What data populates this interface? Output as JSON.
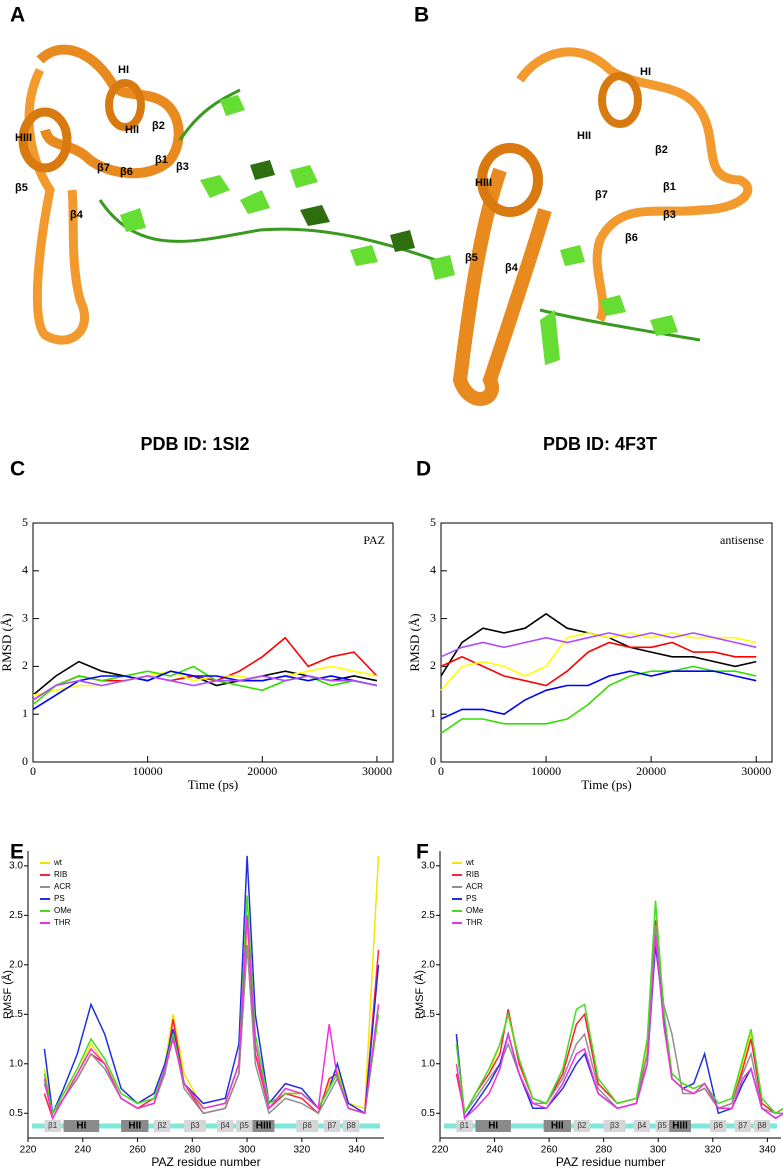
{
  "panel_labels": [
    "A",
    "B",
    "C",
    "D",
    "E",
    "F"
  ],
  "structures": [
    {
      "caption": "PDB ID: 1SI2",
      "labels": [
        "HI",
        "HII",
        "HIII",
        "β2",
        "β7",
        "β6",
        "β1",
        "β3",
        "β5",
        "β4"
      ]
    },
    {
      "caption": "PDB ID: 4F3T",
      "labels": [
        "HI",
        "HII",
        "HIII",
        "β2",
        "β1",
        "β7",
        "β3",
        "β6",
        "β5",
        "β4"
      ]
    }
  ],
  "chart_data": [
    {
      "type": "line",
      "annotation": "PAZ",
      "x_label": "Time (ps)",
      "y_label": "RMSD (Å)",
      "x": [
        0,
        2000,
        4000,
        6000,
        8000,
        10000,
        12000,
        14000,
        16000,
        18000,
        20000,
        22000,
        24000,
        26000,
        28000,
        30000
      ],
      "xlim": [
        0,
        31400
      ],
      "ylim": [
        0,
        5
      ],
      "xticks": [
        0,
        10000,
        20000,
        30000
      ],
      "yticks": [
        0,
        1,
        2,
        3,
        4,
        5
      ],
      "series": [
        {
          "color": "#000000",
          "values": [
            1.4,
            1.8,
            2.1,
            1.9,
            1.8,
            1.7,
            1.9,
            1.8,
            1.6,
            1.7,
            1.8,
            1.9,
            1.8,
            1.7,
            1.8,
            1.7
          ]
        },
        {
          "color": "#ff0000",
          "values": [
            1.3,
            1.6,
            1.8,
            1.7,
            1.7,
            1.8,
            1.7,
            1.8,
            1.7,
            1.9,
            2.2,
            2.6,
            2.0,
            2.2,
            2.3,
            1.8
          ]
        },
        {
          "color": "#ffff00",
          "values": [
            1.4,
            1.5,
            1.6,
            1.6,
            1.7,
            1.8,
            1.9,
            1.7,
            1.8,
            1.8,
            1.7,
            1.8,
            1.9,
            2.0,
            1.9,
            1.8
          ]
        },
        {
          "color": "#33dd00",
          "values": [
            1.2,
            1.6,
            1.8,
            1.7,
            1.8,
            1.9,
            1.8,
            2.0,
            1.7,
            1.6,
            1.5,
            1.7,
            1.8,
            1.6,
            1.7,
            1.6
          ]
        },
        {
          "color": "#0000ff",
          "values": [
            1.1,
            1.4,
            1.7,
            1.8,
            1.8,
            1.7,
            1.9,
            1.8,
            1.8,
            1.7,
            1.7,
            1.8,
            1.7,
            1.8,
            1.7,
            1.6
          ]
        },
        {
          "color": "#b04cff",
          "values": [
            1.3,
            1.6,
            1.7,
            1.6,
            1.7,
            1.8,
            1.7,
            1.6,
            1.7,
            1.7,
            1.8,
            1.7,
            1.8,
            1.7,
            1.7,
            1.6
          ]
        }
      ]
    },
    {
      "type": "line",
      "annotation": "antisense",
      "x_label": "Time (ps)",
      "y_label": "RMSD (Å)",
      "x": [
        0,
        2000,
        4000,
        6000,
        8000,
        10000,
        12000,
        14000,
        16000,
        18000,
        20000,
        22000,
        24000,
        26000,
        28000,
        30000
      ],
      "xlim": [
        0,
        31500
      ],
      "ylim": [
        0,
        5
      ],
      "xticks": [
        0,
        10000,
        20000,
        30000
      ],
      "yticks": [
        0,
        1,
        2,
        3,
        4,
        5
      ],
      "series": [
        {
          "color": "#000000",
          "values": [
            1.8,
            2.5,
            2.8,
            2.7,
            2.8,
            3.1,
            2.8,
            2.7,
            2.6,
            2.4,
            2.3,
            2.2,
            2.2,
            2.1,
            2.0,
            2.1
          ]
        },
        {
          "color": "#ff0000",
          "values": [
            2.0,
            2.2,
            2.0,
            1.8,
            1.7,
            1.6,
            1.9,
            2.3,
            2.5,
            2.4,
            2.4,
            2.5,
            2.3,
            2.3,
            2.2,
            2.2
          ]
        },
        {
          "color": "#ffff00",
          "values": [
            1.5,
            2.0,
            2.1,
            2.0,
            1.8,
            2.0,
            2.6,
            2.7,
            2.6,
            2.7,
            2.6,
            2.7,
            2.6,
            2.6,
            2.6,
            2.5
          ]
        },
        {
          "color": "#33dd00",
          "values": [
            0.6,
            0.9,
            0.9,
            0.8,
            0.8,
            0.8,
            0.9,
            1.2,
            1.6,
            1.8,
            1.9,
            1.9,
            2.0,
            1.9,
            1.9,
            1.8
          ]
        },
        {
          "color": "#0000ff",
          "values": [
            0.9,
            1.1,
            1.1,
            1.0,
            1.3,
            1.5,
            1.6,
            1.6,
            1.8,
            1.9,
            1.8,
            1.9,
            1.9,
            1.9,
            1.8,
            1.7
          ]
        },
        {
          "color": "#b04cff",
          "values": [
            2.2,
            2.4,
            2.5,
            2.4,
            2.5,
            2.6,
            2.5,
            2.6,
            2.7,
            2.6,
            2.7,
            2.6,
            2.7,
            2.6,
            2.5,
            2.4
          ]
        }
      ]
    },
    {
      "type": "line",
      "x_label": "PAZ residue number",
      "y_label": "RMSF (Å)",
      "legend": "upper left",
      "x": [
        226,
        229,
        233,
        238,
        243,
        248,
        254,
        260,
        266,
        270,
        273,
        277,
        284,
        292,
        297,
        300,
        303,
        308,
        314,
        320,
        326,
        330,
        333,
        337,
        343,
        348
      ],
      "xlim": [
        220,
        350
      ],
      "ylim": [
        0.25,
        3.15
      ],
      "xticks": [
        220,
        240,
        260,
        280,
        300,
        320,
        340
      ],
      "yticks": [
        0.5,
        {
          "value": 1,
          "label": "1.0"
        },
        1.5,
        {
          "value": 2,
          "label": "2.0"
        },
        2.5,
        {
          "value": 3,
          "label": "3.0"
        }
      ],
      "series": [
        {
          "name": "wt",
          "color": "#f5e400",
          "values": [
            0.95,
            0.5,
            0.7,
            0.9,
            1.2,
            1.0,
            0.7,
            0.6,
            0.7,
            1.0,
            1.5,
            0.9,
            0.55,
            0.6,
            1.0,
            2.4,
            1.2,
            0.6,
            0.7,
            0.7,
            0.55,
            0.8,
            0.95,
            0.6,
            0.55,
            3.1
          ]
        },
        {
          "name": "RIB",
          "color": "#ff2040",
          "values": [
            0.7,
            0.45,
            0.65,
            0.85,
            1.1,
            1.0,
            0.65,
            0.55,
            0.65,
            0.9,
            1.45,
            0.8,
            0.5,
            0.55,
            0.9,
            2.2,
            1.1,
            0.55,
            0.7,
            0.65,
            0.5,
            0.85,
            0.9,
            0.55,
            0.5,
            2.15
          ]
        },
        {
          "name": "ACR",
          "color": "#909090",
          "values": [
            0.8,
            0.5,
            0.65,
            0.85,
            1.1,
            0.95,
            0.65,
            0.55,
            0.6,
            0.9,
            1.3,
            0.75,
            0.5,
            0.55,
            0.9,
            2.2,
            1.0,
            0.5,
            0.65,
            0.6,
            0.5,
            0.7,
            0.85,
            0.55,
            0.5,
            1.6
          ]
        },
        {
          "name": "PS",
          "color": "#2030e0",
          "values": [
            1.15,
            0.5,
            0.75,
            1.1,
            1.6,
            1.3,
            0.75,
            0.6,
            0.7,
            1.0,
            1.35,
            0.8,
            0.6,
            0.65,
            1.2,
            3.1,
            1.5,
            0.6,
            0.8,
            0.75,
            0.55,
            0.75,
            1.0,
            0.6,
            0.5,
            2.0
          ]
        },
        {
          "name": "OMe",
          "color": "#44dd22",
          "values": [
            0.9,
            0.5,
            0.7,
            0.95,
            1.25,
            1.05,
            0.7,
            0.6,
            0.65,
            0.95,
            1.3,
            0.8,
            0.55,
            0.6,
            1.0,
            2.7,
            1.3,
            0.6,
            0.7,
            0.7,
            0.55,
            0.75,
            0.9,
            0.55,
            0.5,
            1.5
          ]
        },
        {
          "name": "THR",
          "color": "#ee33dd",
          "values": [
            0.85,
            0.45,
            0.65,
            0.9,
            1.15,
            1.0,
            0.65,
            0.55,
            0.6,
            0.95,
            1.25,
            0.8,
            0.55,
            0.6,
            1.0,
            2.5,
            1.2,
            0.55,
            0.75,
            0.7,
            0.55,
            1.4,
            0.85,
            0.55,
            0.5,
            1.6
          ]
        }
      ],
      "secondary_structure": [
        {
          "label": "β1",
          "from": 226,
          "to": 232,
          "kind": "strand"
        },
        {
          "label": "HI",
          "from": 233,
          "to": 246,
          "kind": "helix"
        },
        {
          "label": "HII",
          "from": 254,
          "to": 264,
          "kind": "helix"
        },
        {
          "label": "β2",
          "from": 266,
          "to": 272,
          "kind": "strand"
        },
        {
          "label": "β3",
          "from": 277,
          "to": 285,
          "kind": "strand"
        },
        {
          "label": "β4",
          "from": 289,
          "to": 295,
          "kind": "strand"
        },
        {
          "label": "β5",
          "from": 296,
          "to": 302,
          "kind": "strand"
        },
        {
          "label": "HIII",
          "from": 302,
          "to": 310,
          "kind": "helix"
        },
        {
          "label": "β6",
          "from": 318,
          "to": 326,
          "kind": "strand"
        },
        {
          "label": "β7",
          "from": 328,
          "to": 334,
          "kind": "strand"
        },
        {
          "label": "β8",
          "from": 335,
          "to": 341,
          "kind": "strand"
        }
      ]
    },
    {
      "type": "line",
      "x_label": "PAZ residue number",
      "y_label": "RMSF (Å)",
      "legend": "upper left",
      "x": [
        226,
        229,
        233,
        238,
        242,
        245,
        249,
        254,
        259,
        265,
        270,
        273,
        278,
        285,
        292,
        296,
        299,
        302,
        305,
        309,
        313,
        317,
        322,
        327,
        331,
        334,
        338,
        343,
        346
      ],
      "xlim": [
        220,
        345
      ],
      "ylim": [
        0.25,
        3.15
      ],
      "xticks": [
        220,
        240,
        260,
        280,
        300,
        320,
        340
      ],
      "yticks": [
        0.5,
        {
          "value": 1,
          "label": "1.0"
        },
        1.5,
        {
          "value": 2,
          "label": "2.0"
        },
        2.5,
        {
          "value": 3,
          "label": "3.0"
        }
      ],
      "series": [
        {
          "name": "wt",
          "color": "#f5e400",
          "values": [
            1.3,
            0.5,
            0.7,
            0.9,
            1.2,
            1.5,
            1.0,
            0.65,
            0.6,
            0.9,
            1.4,
            1.5,
            0.8,
            0.6,
            0.65,
            1.2,
            2.6,
            1.5,
            0.9,
            0.8,
            0.75,
            0.8,
            0.6,
            0.65,
            1.0,
            1.3,
            0.6,
            0.5,
            0.55
          ]
        },
        {
          "name": "RIB",
          "color": "#ff2040",
          "values": [
            0.9,
            0.5,
            0.7,
            0.9,
            1.1,
            1.55,
            1.0,
            0.65,
            0.6,
            0.9,
            1.4,
            1.5,
            0.8,
            0.6,
            0.65,
            1.1,
            2.45,
            1.4,
            0.85,
            0.75,
            0.7,
            0.75,
            0.55,
            0.6,
            0.95,
            1.25,
            0.6,
            0.5,
            0.55
          ]
        },
        {
          "name": "ACR",
          "color": "#909090",
          "values": [
            1.2,
            0.5,
            0.65,
            0.85,
            1.0,
            1.2,
            0.9,
            0.6,
            0.6,
            0.85,
            1.2,
            1.3,
            0.75,
            0.55,
            0.6,
            1.1,
            2.4,
            1.6,
            1.3,
            0.7,
            0.7,
            0.75,
            0.55,
            0.6,
            0.9,
            1.1,
            0.55,
            0.5,
            0.5
          ]
        },
        {
          "name": "PS",
          "color": "#2030e0",
          "values": [
            1.3,
            0.45,
            0.6,
            0.8,
            1.0,
            1.3,
            0.9,
            0.55,
            0.55,
            0.75,
            1.0,
            1.1,
            0.7,
            0.55,
            0.6,
            1.0,
            2.2,
            1.5,
            0.85,
            0.75,
            0.8,
            1.1,
            0.5,
            0.55,
            0.8,
            0.95,
            0.55,
            0.45,
            0.5
          ]
        },
        {
          "name": "OMe",
          "color": "#44dd22",
          "values": [
            1.2,
            0.5,
            0.7,
            0.95,
            1.2,
            1.5,
            1.05,
            0.65,
            0.6,
            0.95,
            1.55,
            1.6,
            0.85,
            0.6,
            0.65,
            1.25,
            2.65,
            1.55,
            0.9,
            0.8,
            0.75,
            0.8,
            0.6,
            0.65,
            1.05,
            1.35,
            0.65,
            0.5,
            0.55
          ]
        },
        {
          "name": "THR",
          "color": "#ee33dd",
          "values": [
            1.0,
            0.45,
            0.55,
            0.7,
            0.95,
            1.3,
            0.9,
            0.6,
            0.55,
            0.8,
            1.1,
            1.15,
            0.7,
            0.55,
            0.6,
            1.0,
            2.3,
            1.4,
            0.85,
            0.75,
            0.7,
            0.8,
            0.55,
            0.55,
            0.85,
            0.95,
            0.55,
            0.45,
            0.5
          ]
        }
      ],
      "secondary_structure": [
        {
          "label": "β1",
          "from": 226,
          "to": 232,
          "kind": "strand"
        },
        {
          "label": "HI",
          "from": 233,
          "to": 246,
          "kind": "helix"
        },
        {
          "label": "HII",
          "from": 258,
          "to": 268,
          "kind": "helix"
        },
        {
          "label": "β2",
          "from": 269,
          "to": 275,
          "kind": "strand"
        },
        {
          "label": "β3",
          "from": 280,
          "to": 288,
          "kind": "strand"
        },
        {
          "label": "β4",
          "from": 291,
          "to": 297,
          "kind": "strand"
        },
        {
          "label": "β5",
          "from": 299,
          "to": 304,
          "kind": "strand"
        },
        {
          "label": "HIII",
          "from": 304,
          "to": 312,
          "kind": "helix"
        },
        {
          "label": "β6",
          "from": 319,
          "to": 325,
          "kind": "strand"
        },
        {
          "label": "β7",
          "from": 328,
          "to": 334,
          "kind": "strand"
        },
        {
          "label": "β8",
          "from": 335,
          "to": 341,
          "kind": "strand"
        }
      ]
    }
  ]
}
